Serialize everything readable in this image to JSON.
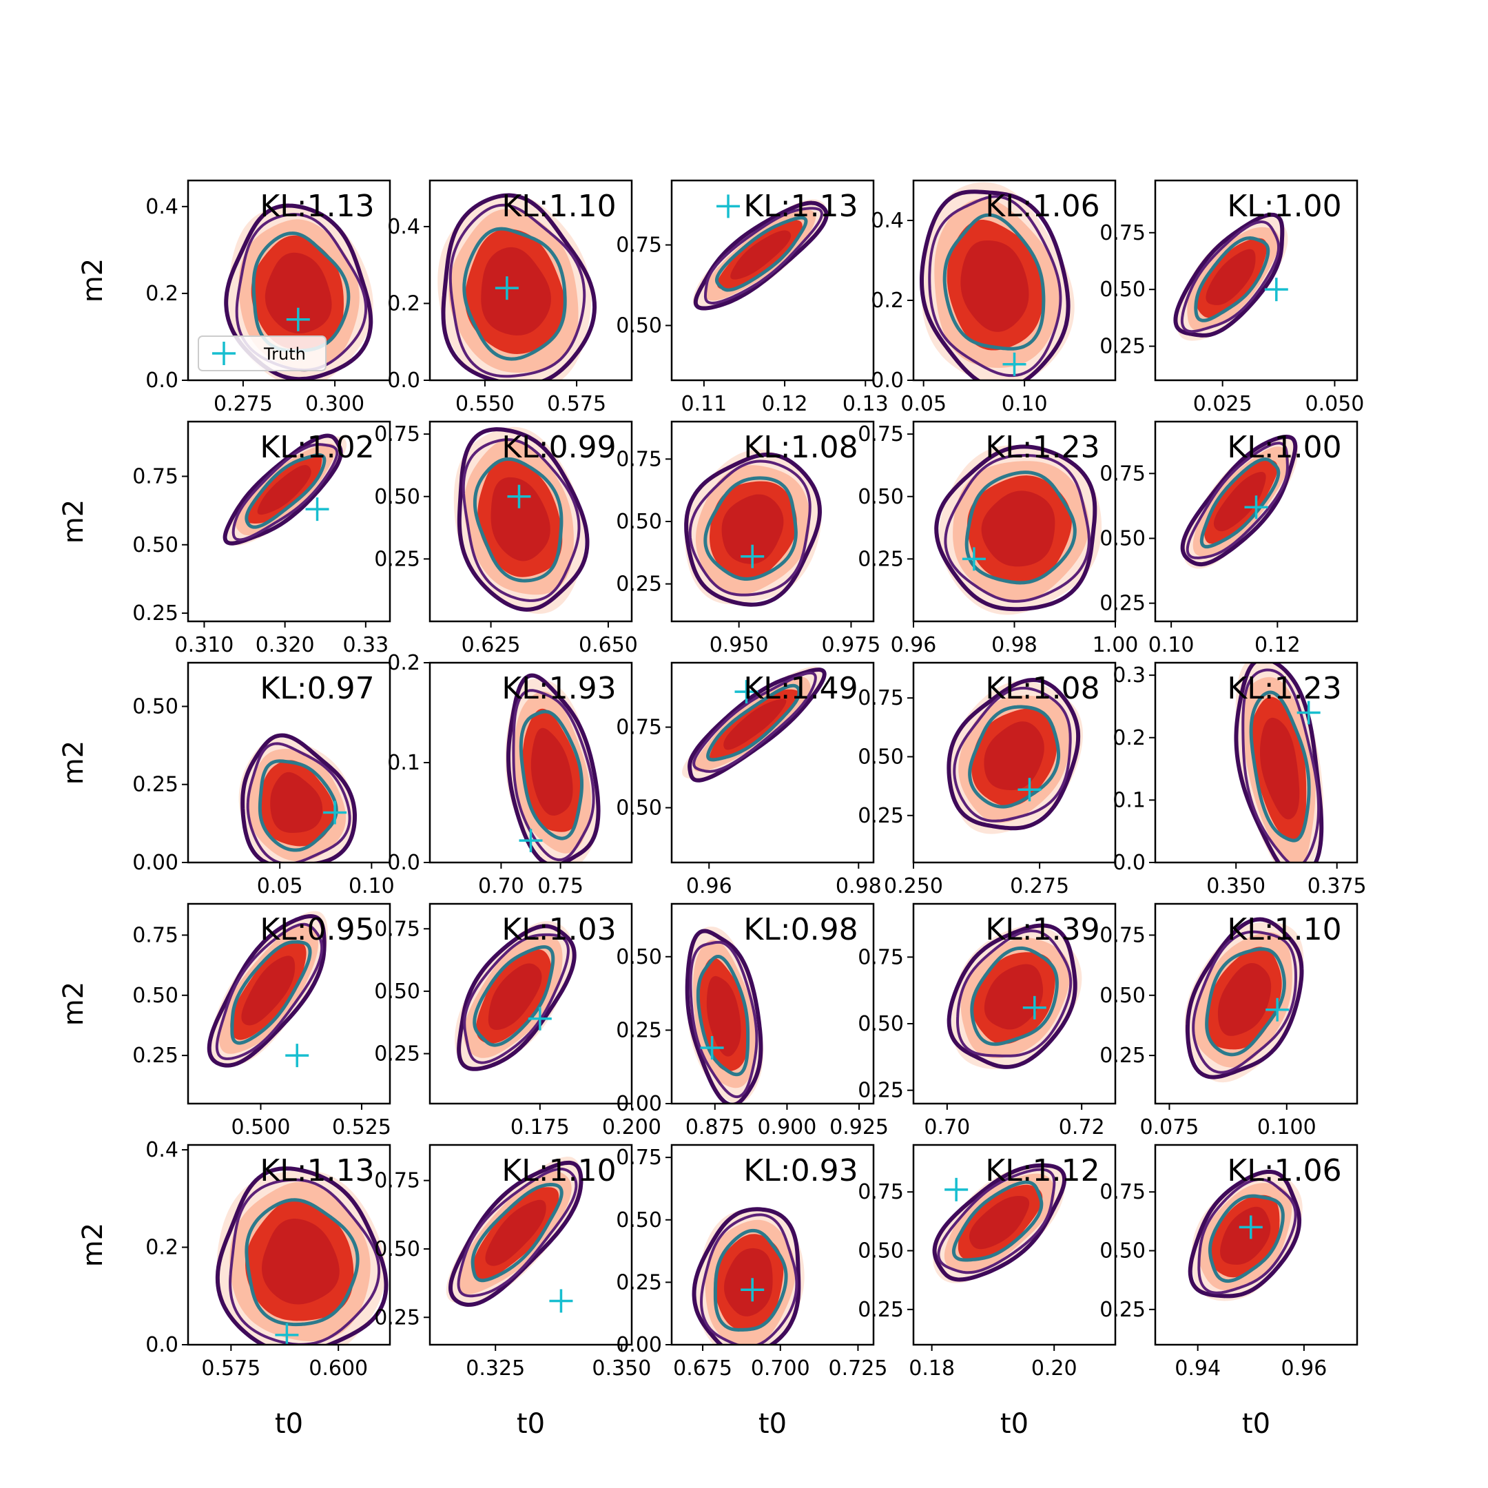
{
  "figure": {
    "x_axis_label": "t0",
    "y_axis_label": "m2",
    "legend": {
      "label": "Truth",
      "placement": "lower-left",
      "panel": 0
    }
  },
  "colors": {
    "fill_outer": "#fde0d2",
    "fill_mid": "#fcbba1",
    "fill_inner": "#e0311f",
    "fill_core": "#c81e1e",
    "contour_outer": "#3f0a5a",
    "contour_mid": "#5b2178",
    "contour_inner": "#2c7a8c",
    "truth_marker": "#17becf"
  },
  "chart_data": [
    {
      "type": "contour",
      "title": "KL:1.13",
      "xticks": [
        "0.275",
        "0.300"
      ],
      "yticks": [
        "0.0",
        "0.2",
        "0.4"
      ],
      "xlim": [
        0.26,
        0.315
      ],
      "ylim": [
        0,
        0.46
      ],
      "truth": [
        0.29,
        0.14
      ],
      "shape": {
        "cx": 0.29,
        "cy": 0.2,
        "w": 0.032,
        "h": 0.34,
        "angle": 80,
        "skew": 0.1
      }
    },
    {
      "type": "contour",
      "title": "KL:1.10",
      "xticks": [
        "0.550",
        "0.575"
      ],
      "yticks": [
        "0.0",
        "0.2",
        "0.4"
      ],
      "xlim": [
        0.535,
        0.59
      ],
      "ylim": [
        0,
        0.52
      ],
      "truth": [
        0.556,
        0.24
      ],
      "shape": {
        "cx": 0.558,
        "cy": 0.23,
        "w": 0.034,
        "h": 0.42,
        "angle": 80,
        "skew": 0.1
      }
    },
    {
      "type": "contour",
      "title": "KL:1.13",
      "xticks": [
        "0.11",
        "0.12",
        "0.13"
      ],
      "yticks": [
        "0.50",
        "0.75"
      ],
      "xlim": [
        0.106,
        0.131
      ],
      "ylim": [
        0.33,
        0.95
      ],
      "truth": [
        0.113,
        0.87
      ],
      "shape": {
        "cx": 0.117,
        "cy": 0.72,
        "w": 0.005,
        "h": 0.42,
        "angle": -38,
        "skew": 0
      }
    },
    {
      "type": "contour",
      "title": "KL:1.06",
      "xticks": [
        "0.05",
        "0.10"
      ],
      "yticks": [
        "0.0",
        "0.2",
        "0.4"
      ],
      "xlim": [
        0.045,
        0.145
      ],
      "ylim": [
        0,
        0.5
      ],
      "truth": [
        0.095,
        0.04
      ],
      "shape": {
        "cx": 0.085,
        "cy": 0.24,
        "w": 0.06,
        "h": 0.42,
        "angle": 78,
        "skew": 0.1
      }
    },
    {
      "type": "contour",
      "title": "KL:1.00",
      "xticks": [
        "0.025",
        "0.050"
      ],
      "yticks": [
        "0.25",
        "0.50",
        "0.75"
      ],
      "xlim": [
        0.01,
        0.055
      ],
      "ylim": [
        0.1,
        0.98
      ],
      "truth": [
        0.037,
        0.5
      ],
      "shape": {
        "cx": 0.027,
        "cy": 0.55,
        "w": 0.012,
        "h": 0.55,
        "angle": -50,
        "skew": 0
      }
    },
    {
      "type": "contour",
      "title": "KL:1.02",
      "xticks": [
        "0.310",
        "0.320",
        "0.33"
      ],
      "yticks": [
        "0.25",
        "0.50",
        "0.75"
      ],
      "xlim": [
        0.308,
        0.333
      ],
      "ylim": [
        0.22,
        0.95
      ],
      "truth": [
        0.324,
        0.63
      ],
      "shape": {
        "cx": 0.32,
        "cy": 0.7,
        "w": 0.005,
        "h": 0.46,
        "angle": -42,
        "skew": 0
      }
    },
    {
      "type": "contour",
      "title": "KL:0.99",
      "xticks": [
        "0.625",
        "0.650"
      ],
      "yticks": [
        "0.25",
        "0.50",
        "0.75"
      ],
      "xlim": [
        0.612,
        0.655
      ],
      "ylim": [
        0,
        0.8
      ],
      "truth": [
        0.631,
        0.5
      ],
      "shape": {
        "cx": 0.631,
        "cy": 0.41,
        "w": 0.022,
        "h": 0.62,
        "angle": 75,
        "skew": 0.05
      }
    },
    {
      "type": "contour",
      "title": "KL:1.08",
      "xticks": [
        "0.950",
        "0.975"
      ],
      "yticks": [
        "0.25",
        "0.50",
        "0.75"
      ],
      "xlim": [
        0.935,
        0.98
      ],
      "ylim": [
        0.1,
        0.9
      ],
      "truth": [
        0.953,
        0.36
      ],
      "shape": {
        "cx": 0.953,
        "cy": 0.47,
        "w": 0.024,
        "h": 0.52,
        "angle": -65,
        "skew": 0
      }
    },
    {
      "type": "contour",
      "title": "KL:1.23",
      "xticks": [
        "0.96",
        "0.98",
        "1.00"
      ],
      "yticks": [
        "0.25",
        "0.50",
        "0.75"
      ],
      "xlim": [
        0.96,
        1.0
      ],
      "ylim": [
        0,
        0.8
      ],
      "truth": [
        0.972,
        0.25
      ],
      "shape": {
        "cx": 0.981,
        "cy": 0.37,
        "w": 0.026,
        "h": 0.56,
        "angle": -60,
        "skew": 0
      }
    },
    {
      "type": "contour",
      "title": "KL:1.00",
      "xticks": [
        "0.10",
        "0.12"
      ],
      "yticks": [
        "0.25",
        "0.50",
        "0.75"
      ],
      "xlim": [
        0.097,
        0.135
      ],
      "ylim": [
        0.18,
        0.95
      ],
      "truth": [
        0.116,
        0.62
      ],
      "shape": {
        "cx": 0.113,
        "cy": 0.64,
        "w": 0.009,
        "h": 0.52,
        "angle": -50,
        "skew": 0
      }
    },
    {
      "type": "contour",
      "title": "KL:0.97",
      "xticks": [
        "0.05",
        "0.10"
      ],
      "yticks": [
        "0.00",
        "0.25",
        "0.50"
      ],
      "xlim": [
        0,
        0.11
      ],
      "ylim": [
        0,
        0.64
      ],
      "truth": [
        0.08,
        0.16
      ],
      "shape": {
        "cx": 0.058,
        "cy": 0.19,
        "w": 0.05,
        "h": 0.36,
        "angle": 70,
        "skew": 0.2
      }
    },
    {
      "type": "contour",
      "title": "KL:1.93",
      "xticks": [
        "0.70",
        "0.75"
      ],
      "yticks": [
        "0.0",
        "0.1",
        "0.2"
      ],
      "xlim": [
        0.64,
        0.81
      ],
      "ylim": [
        0,
        0.2
      ],
      "truth": [
        0.725,
        0.022
      ],
      "shape": {
        "cx": 0.742,
        "cy": 0.09,
        "w": 0.06,
        "h": 0.16,
        "angle": 80,
        "skew": 0.1
      }
    },
    {
      "type": "contour",
      "title": "KL:1.49",
      "xticks": [
        "0.96",
        "0.98"
      ],
      "yticks": [
        "0.50",
        "0.75"
      ],
      "xlim": [
        0.955,
        0.982
      ],
      "ylim": [
        0.33,
        0.95
      ],
      "truth": [
        0.965,
        0.86
      ],
      "shape": {
        "cx": 0.966,
        "cy": 0.76,
        "w": 0.005,
        "h": 0.44,
        "angle": -38,
        "skew": 0
      }
    },
    {
      "type": "contour",
      "title": "KL:1.08",
      "xticks": [
        "0.250",
        "0.275"
      ],
      "yticks": [
        "0.25",
        "0.50",
        "0.75"
      ],
      "xlim": [
        0.25,
        0.29
      ],
      "ylim": [
        0.05,
        0.9
      ],
      "truth": [
        0.273,
        0.36
      ],
      "shape": {
        "cx": 0.27,
        "cy": 0.5,
        "w": 0.02,
        "h": 0.56,
        "angle": -60,
        "skew": 0
      }
    },
    {
      "type": "contour",
      "title": "KL:1.23",
      "xticks": [
        "0.350",
        "0.375"
      ],
      "yticks": [
        "0.0",
        "0.1",
        "0.2",
        "0.3"
      ],
      "xlim": [
        0.33,
        0.38
      ],
      "ylim": [
        0,
        0.32
      ],
      "truth": [
        0.368,
        0.24
      ],
      "shape": {
        "cx": 0.361,
        "cy": 0.15,
        "w": 0.016,
        "h": 0.3,
        "angle": 80,
        "skew": -0.1
      }
    },
    {
      "type": "contour",
      "title": "KL:0.95",
      "xticks": [
        "0.500",
        "0.525"
      ],
      "yticks": [
        "0.25",
        "0.50",
        "0.75"
      ],
      "xlim": [
        0.482,
        0.532
      ],
      "ylim": [
        0.05,
        0.88
      ],
      "truth": [
        0.509,
        0.25
      ],
      "shape": {
        "cx": 0.502,
        "cy": 0.52,
        "w": 0.014,
        "h": 0.62,
        "angle": -55,
        "skew": 0
      }
    },
    {
      "type": "contour",
      "title": "KL:1.03",
      "xticks": [
        "0.175",
        "0.200"
      ],
      "yticks": [
        "0.25",
        "0.50",
        "0.75"
      ],
      "xlim": [
        0.145,
        0.2
      ],
      "ylim": [
        0.05,
        0.85
      ],
      "truth": [
        0.175,
        0.39
      ],
      "shape": {
        "cx": 0.168,
        "cy": 0.48,
        "w": 0.018,
        "h": 0.56,
        "angle": -55,
        "skew": 0
      }
    },
    {
      "type": "contour",
      "title": "KL:0.98",
      "xticks": [
        "0.875",
        "0.900",
        "0.925"
      ],
      "yticks": [
        "0.00",
        "0.25",
        "0.50"
      ],
      "xlim": [
        0.86,
        0.93
      ],
      "ylim": [
        0,
        0.68
      ],
      "truth": [
        0.874,
        0.19
      ],
      "shape": {
        "cx": 0.878,
        "cy": 0.3,
        "w": 0.02,
        "h": 0.5,
        "angle": 80,
        "skew": 0.05
      }
    },
    {
      "type": "contour",
      "title": "KL:1.39",
      "xticks": [
        "0.70",
        "0.72"
      ],
      "yticks": [
        "0.25",
        "0.50",
        "0.75"
      ],
      "xlim": [
        0.695,
        0.725
      ],
      "ylim": [
        0.2,
        0.95
      ],
      "truth": [
        0.713,
        0.56
      ],
      "shape": {
        "cx": 0.71,
        "cy": 0.6,
        "w": 0.014,
        "h": 0.48,
        "angle": -55,
        "skew": 0
      }
    },
    {
      "type": "contour",
      "title": "KL:1.10",
      "xticks": [
        "0.075",
        "0.100"
      ],
      "yticks": [
        "0.25",
        "0.50",
        "0.75"
      ],
      "xlim": [
        0.072,
        0.115
      ],
      "ylim": [
        0.05,
        0.88
      ],
      "truth": [
        0.098,
        0.44
      ],
      "shape": {
        "cx": 0.091,
        "cy": 0.48,
        "w": 0.018,
        "h": 0.58,
        "angle": -65,
        "skew": 0
      }
    },
    {
      "type": "contour",
      "title": "KL:1.13",
      "xticks": [
        "0.575",
        "0.600"
      ],
      "yticks": [
        "0.0",
        "0.2",
        "0.4"
      ],
      "xlim": [
        0.565,
        0.612
      ],
      "ylim": [
        0,
        0.41
      ],
      "truth": [
        0.588,
        0.02
      ],
      "shape": {
        "cx": 0.591,
        "cy": 0.17,
        "w": 0.032,
        "h": 0.32,
        "angle": 80,
        "skew": 0.1
      }
    },
    {
      "type": "contour",
      "title": "KL:1.10",
      "xticks": [
        "0.325",
        "0.350"
      ],
      "yticks": [
        "0.25",
        "0.50",
        "0.75"
      ],
      "xlim": [
        0.312,
        0.352
      ],
      "ylim": [
        0.15,
        0.88
      ],
      "truth": [
        0.338,
        0.31
      ],
      "shape": {
        "cx": 0.329,
        "cy": 0.56,
        "w": 0.011,
        "h": 0.56,
        "angle": -48,
        "skew": 0
      }
    },
    {
      "type": "contour",
      "title": "KL:0.93",
      "xticks": [
        "0.675",
        "0.700",
        "0.725"
      ],
      "yticks": [
        "0.00",
        "0.25",
        "0.50",
        "0.75"
      ],
      "xlim": [
        0.665,
        0.73
      ],
      "ylim": [
        0,
        0.8
      ],
      "truth": [
        0.691,
        0.22
      ],
      "shape": {
        "cx": 0.69,
        "cy": 0.25,
        "w": 0.028,
        "h": 0.5,
        "angle": -80,
        "skew": 0
      }
    },
    {
      "type": "contour",
      "title": "KL:1.12",
      "xticks": [
        "0.18",
        "0.20"
      ],
      "yticks": [
        "0.25",
        "0.50",
        "0.75"
      ],
      "xlim": [
        0.177,
        0.21
      ],
      "ylim": [
        0.1,
        0.95
      ],
      "truth": [
        0.184,
        0.76
      ],
      "shape": {
        "cx": 0.191,
        "cy": 0.62,
        "w": 0.01,
        "h": 0.56,
        "angle": -40,
        "skew": 0
      }
    },
    {
      "type": "contour",
      "title": "KL:1.06",
      "xticks": [
        "0.94",
        "0.96"
      ],
      "yticks": [
        "0.25",
        "0.50",
        "0.75"
      ],
      "xlim": [
        0.932,
        0.97
      ],
      "ylim": [
        0.1,
        0.95
      ],
      "truth": [
        0.95,
        0.6
      ],
      "shape": {
        "cx": 0.949,
        "cy": 0.56,
        "w": 0.014,
        "h": 0.5,
        "angle": -55,
        "skew": 0
      }
    }
  ]
}
